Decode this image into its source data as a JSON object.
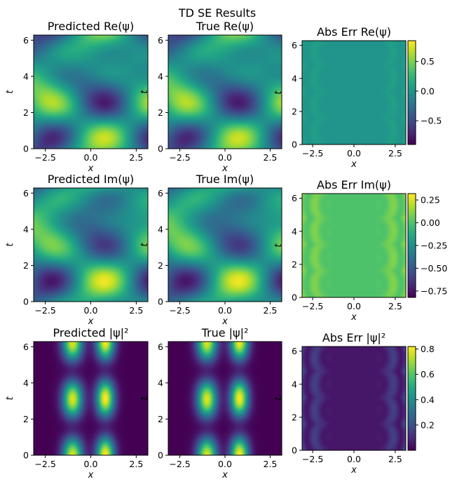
{
  "suptitle": "TD SE Results",
  "chart_data": [
    {
      "type": "heatmap",
      "title": "Predicted Re(ψ)",
      "xlabel": "x",
      "ylabel": "t",
      "xlim": [
        -3.14159,
        3.14159
      ],
      "ylim": [
        0,
        6.28318
      ],
      "xticks": [
        "−2.5",
        "0.0",
        "2.5"
      ],
      "yticks": [
        "0",
        "2",
        "4",
        "6"
      ],
      "field": "re",
      "colorbar": null
    },
    {
      "type": "heatmap",
      "title": "True Re(ψ)",
      "xlabel": "x",
      "ylabel": "t",
      "xlim": [
        -3.14159,
        3.14159
      ],
      "ylim": [
        0,
        6.28318
      ],
      "xticks": [
        "−2.5",
        "0.0",
        "2.5"
      ],
      "yticks": [
        "0",
        "2",
        "4",
        "6"
      ],
      "field": "re",
      "colorbar": null
    },
    {
      "type": "heatmap",
      "title": "Abs Err Re(ψ)",
      "xlabel": "x",
      "ylabel": "t",
      "xlim": [
        -3.14159,
        3.14159
      ],
      "ylim": [
        0,
        6.28318
      ],
      "xticks": [
        "−2.5",
        "0.0",
        "2.5"
      ],
      "yticks": [
        "0",
        "2",
        "4",
        "6"
      ],
      "field": "err_re",
      "colorbar": {
        "vmin": -0.9,
        "vmax": 0.85,
        "ticks": [
          0.5,
          0.0,
          -0.5
        ],
        "labels": [
          "0.5",
          "0.0",
          "−0.5"
        ]
      }
    },
    {
      "type": "heatmap",
      "title": "Predicted Im(ψ)",
      "xlabel": "x",
      "ylabel": "t",
      "xlim": [
        -3.14159,
        3.14159
      ],
      "ylim": [
        0,
        6.28318
      ],
      "xticks": [
        "−2.5",
        "0.0",
        "2.5"
      ],
      "yticks": [
        "0",
        "2",
        "4",
        "6"
      ],
      "field": "im",
      "colorbar": null
    },
    {
      "type": "heatmap",
      "title": "True Im(ψ)",
      "xlabel": "x",
      "ylabel": "t",
      "xlim": [
        -3.14159,
        3.14159
      ],
      "ylim": [
        0,
        6.28318
      ],
      "xticks": [
        "−2.5",
        "0.0",
        "2.5"
      ],
      "yticks": [
        "0",
        "2",
        "4",
        "6"
      ],
      "field": "im",
      "colorbar": null
    },
    {
      "type": "heatmap",
      "title": "Abs Err Im(ψ)",
      "xlabel": "x",
      "ylabel": "t",
      "xlim": [
        -3.14159,
        3.14159
      ],
      "ylim": [
        0,
        6.28318
      ],
      "xticks": [
        "−2.5",
        "0.0",
        "2.5"
      ],
      "yticks": [
        "0",
        "2",
        "4",
        "6"
      ],
      "field": "err_im",
      "colorbar": {
        "vmin": -0.82,
        "vmax": 0.32,
        "ticks": [
          0.25,
          0.0,
          -0.25,
          -0.5,
          -0.75
        ],
        "labels": [
          "0.25",
          "0.00",
          "−0.25",
          "−0.50",
          "−0.75"
        ]
      }
    },
    {
      "type": "heatmap",
      "title": "Predicted |ψ|²",
      "xlabel": "x",
      "ylabel": "t",
      "xlim": [
        -3.14159,
        3.14159
      ],
      "ylim": [
        0,
        6.28318
      ],
      "xticks": [
        "−2.5",
        "0.0",
        "2.5"
      ],
      "yticks": [
        "0",
        "2",
        "4",
        "6"
      ],
      "field": "abs2",
      "colorbar": null
    },
    {
      "type": "heatmap",
      "title": "True |ψ|²",
      "xlabel": "x",
      "ylabel": "t",
      "xlim": [
        -3.14159,
        3.14159
      ],
      "ylim": [
        0,
        6.28318
      ],
      "xticks": [
        "−2.5",
        "0.0",
        "2.5"
      ],
      "yticks": [
        "0",
        "2",
        "4",
        "6"
      ],
      "field": "abs2",
      "colorbar": null
    },
    {
      "type": "heatmap",
      "title": "Abs Err |ψ|²",
      "xlabel": "x",
      "ylabel": "t",
      "xlim": [
        -3.14159,
        3.14159
      ],
      "ylim": [
        0,
        6.28318
      ],
      "xticks": [
        "−2.5",
        "0.0",
        "2.5"
      ],
      "yticks": [
        "0",
        "2",
        "4",
        "6"
      ],
      "field": "err_abs2",
      "colorbar": {
        "vmin": 0.0,
        "vmax": 0.82,
        "ticks": [
          0.8,
          0.6,
          0.4,
          0.2
        ],
        "labels": [
          "0.8",
          "0.6",
          "0.4",
          "0.2"
        ]
      }
    }
  ],
  "colormap": "viridis"
}
